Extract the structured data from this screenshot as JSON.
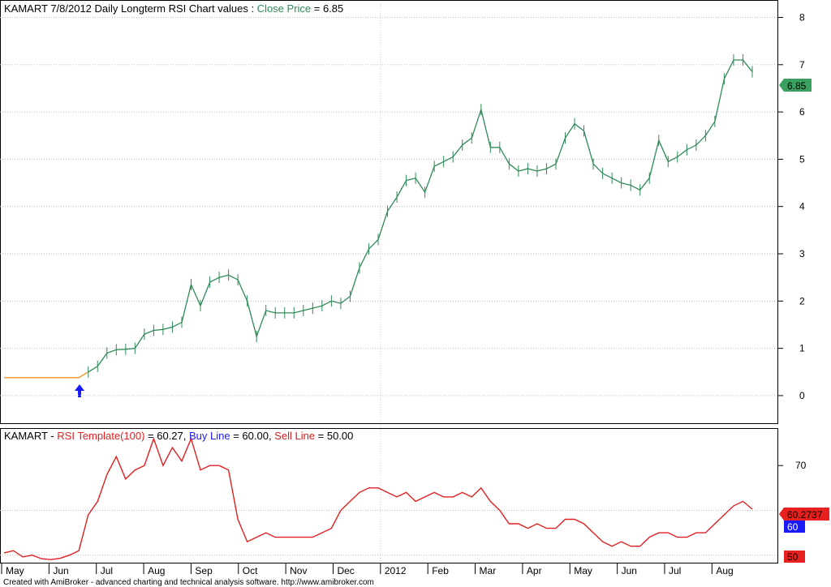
{
  "price_panel": {
    "title_prefix": "KAMART 7/8/2012 Daily Longterm  RSI Chart values : ",
    "title_series": "Close Price",
    "title_suffix": " = 6.85",
    "last_value_badge": "6.85",
    "colors": {
      "price": "#2e8b57",
      "pre_signal": "#f0a030",
      "arrow": "#1a1aff",
      "badge": "#3aa060"
    }
  },
  "rsi_panel": {
    "title_prefix": "KAMART - ",
    "rsi_label": "RSI Template(100)",
    "rsi_value": " = 60.27, ",
    "buy_label": "Buy Line",
    "buy_value": " = 60.00, ",
    "sell_label": "Sell Line",
    "sell_value": " = 50.00",
    "badges": {
      "rsi": "60.2737",
      "buy": "60",
      "sell": "50"
    },
    "colors": {
      "rsi": "#e02020",
      "buy": "#1a1aff",
      "sell": "#e02020"
    }
  },
  "footer": {
    "credit": "Created with AmiBroker - advanced charting and technical analysis software. http://www.amibroker.com"
  },
  "chart_data": [
    {
      "type": "line",
      "title": "KAMART 7/8/2012 Daily Longterm  RSI Chart values : Close Price = 6.85",
      "series": [
        {
          "name": "Close Price",
          "values_sampled": [
            0.38,
            0.38,
            0.38,
            0.38,
            0.38,
            0.38,
            0.38,
            0.38,
            0.38,
            0.5,
            0.62,
            0.9,
            0.97,
            0.98,
            1.0,
            1.3,
            1.38,
            1.4,
            1.45,
            1.55,
            2.35,
            1.9,
            2.4,
            2.5,
            2.55,
            2.45,
            2.0,
            1.25,
            1.8,
            1.75,
            1.75,
            1.75,
            1.8,
            1.85,
            1.9,
            2.0,
            1.95,
            2.1,
            2.7,
            3.1,
            3.3,
            3.9,
            4.2,
            4.55,
            4.6,
            4.3,
            4.85,
            4.95,
            5.05,
            5.3,
            5.45,
            6.05,
            5.25,
            5.25,
            4.9,
            4.75,
            4.8,
            4.75,
            4.8,
            4.9,
            5.45,
            5.75,
            5.6,
            4.9,
            4.7,
            4.6,
            4.5,
            4.45,
            4.35,
            4.6,
            5.4,
            4.95,
            5.05,
            5.2,
            5.3,
            5.5,
            5.8,
            6.7,
            7.1,
            7.1,
            6.85
          ]
        }
      ],
      "x_ticks": [
        "May",
        "Jun",
        "Jul",
        "Aug",
        "Sep",
        "Oct",
        "Nov",
        "Dec",
        "2012",
        "Feb",
        "Mar",
        "Apr",
        "May",
        "Jun",
        "Jul",
        "Aug"
      ],
      "y_ticks": [
        0,
        1,
        2,
        3,
        4,
        5,
        6,
        7,
        8
      ],
      "ylim": [
        -0.55,
        8.3
      ],
      "annotations": [
        "buy arrow at start of Jul",
        "last value 6.85"
      ]
    },
    {
      "type": "line",
      "title": "KAMART - RSI Template(100) = 60.27, Buy Line = 60.00, Sell Line = 50.00",
      "series": [
        {
          "name": "RSI Template(100)",
          "values_sampled": [
            50.5,
            51,
            49.6,
            50,
            49.2,
            49,
            49.3,
            50,
            51,
            59,
            62,
            68,
            72,
            67,
            69,
            70,
            76,
            70,
            74,
            71,
            76,
            69,
            70,
            70,
            69,
            58,
            53,
            54,
            55,
            54,
            54,
            54,
            54,
            54,
            55,
            56,
            60,
            62,
            64,
            65,
            65,
            64,
            63,
            64,
            62,
            63,
            64,
            63,
            63,
            64,
            63,
            65,
            62,
            60,
            57,
            57,
            56,
            57,
            56,
            56,
            58,
            58,
            57,
            55,
            53,
            52,
            53,
            52,
            52,
            54,
            55,
            55,
            54,
            54,
            55,
            55,
            57,
            59,
            61,
            62,
            60.27
          ]
        },
        {
          "name": "Buy Line",
          "values": [
            60
          ]
        },
        {
          "name": "Sell Line",
          "values": [
            50
          ]
        }
      ],
      "x_ticks": [
        "May",
        "Jun",
        "Jul",
        "Aug",
        "Sep",
        "Oct",
        "Nov",
        "Dec",
        "2012",
        "Feb",
        "Mar",
        "Apr",
        "May",
        "Jun",
        "Jul",
        "Aug"
      ],
      "y_ticks": [
        70
      ],
      "ylim": [
        48.5,
        78
      ]
    }
  ]
}
